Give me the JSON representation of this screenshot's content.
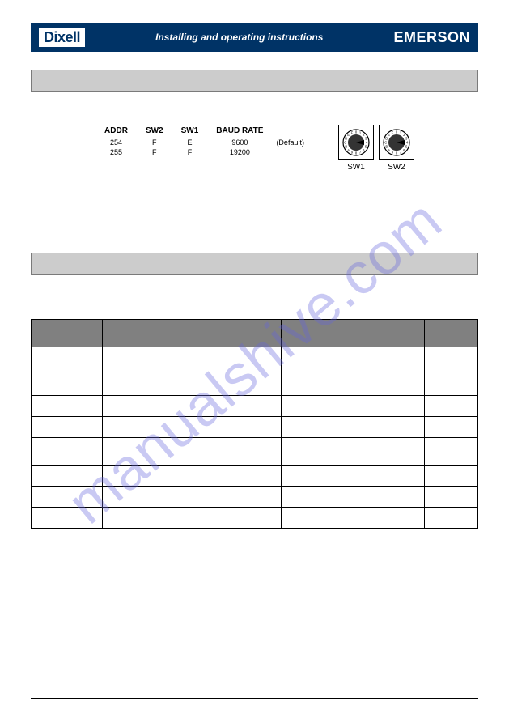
{
  "header": {
    "logo_left": "Dixell",
    "title": "Installing and operating instructions",
    "logo_right": "EMERSON"
  },
  "watermark": "manualshive.com",
  "settings": {
    "columns": [
      "ADDR",
      "SW2",
      "SW1",
      "BAUD RATE"
    ],
    "rows": [
      {
        "addr": "254",
        "sw2": "F",
        "sw1": "E",
        "baud": "9600",
        "note": "(Default)"
      },
      {
        "addr": "255",
        "sw2": "F",
        "sw1": "F",
        "baud": "19200",
        "note": ""
      }
    ],
    "dial_chars": "0123456789ABCDEF",
    "dial1_label": "SW1",
    "dial2_label": "SW2"
  },
  "colors": {
    "header_bg": "#003366",
    "grey_box_bg": "#cccccc",
    "grey_box_border": "#7a7a7a",
    "table_header_bg": "#808080",
    "watermark_color": "rgba(100,100,220,0.35)"
  },
  "data_table": {
    "columns": 5,
    "col_widths_pct": [
      16,
      40,
      20,
      12,
      12
    ],
    "rows": 8
  }
}
